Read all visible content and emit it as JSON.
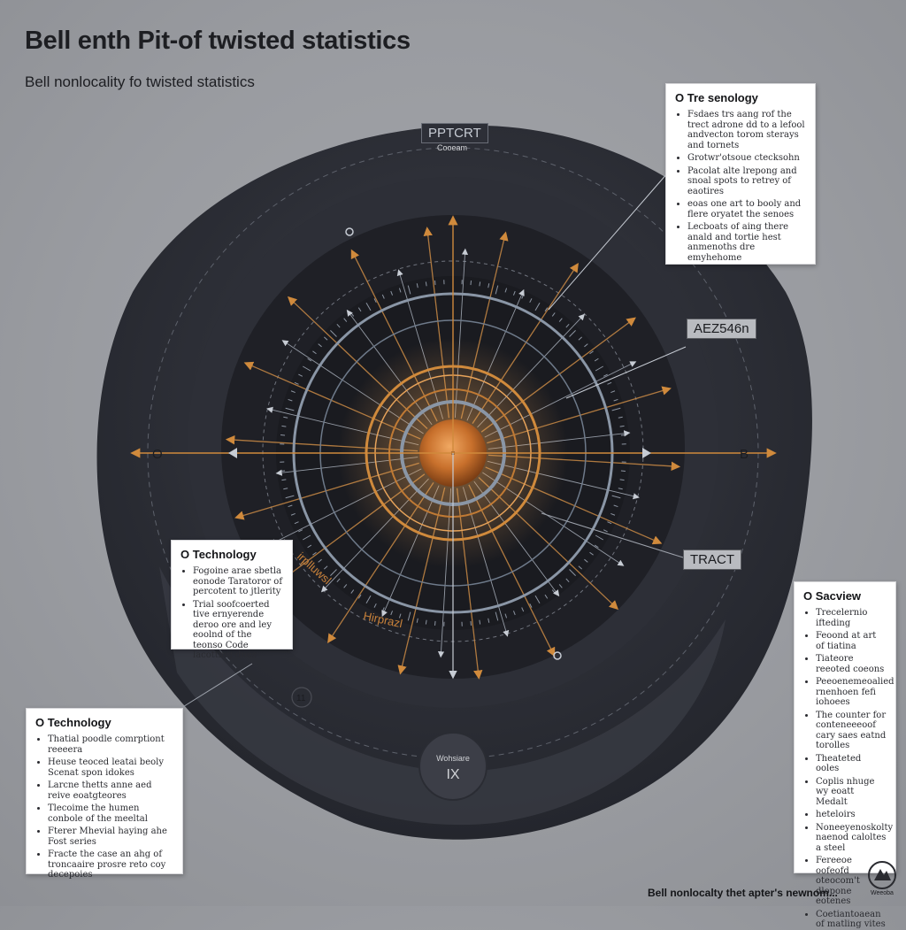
{
  "header": {
    "title": "Bell enth Pit-of twisted statistics",
    "subtitle": "Bell nonlocality fo twisted statistics"
  },
  "diagram": {
    "top_tag": "PPTCRT",
    "top_tag_sub": "Cooeam",
    "right_tag": "AEZ546n",
    "lower_tag": "TRACT",
    "left_axis_label": "O",
    "right_axis_label": "B",
    "bottom_badge_line1": "Wohsiare",
    "bottom_badge_line2": "IX",
    "small_circle_label": "11",
    "arc_text_1": "irplluwsl",
    "arc_text_2": "Hirprazl",
    "colors": {
      "background": "#9c9ea3",
      "outer_shell": "#2c2e36",
      "inner_disc": "#1c1d22",
      "accent_orange": "#d08a3c",
      "ring_steel": "#8a96a6"
    }
  },
  "panels": {
    "top_right": {
      "title": "O Tre senology",
      "items": [
        "Fsdaes trs aang rof the trect adrone dd to a lefool andvecton torom sterays and tornets",
        "Grotwr'otsoue ctecksohn",
        "Pacolat alte lrepong and snoal spots to retrey of eaotires",
        "eoas one art to booly and flere oryatet the senoes",
        "Lecboats of aing there anald and tortie hest anmenoths dre emyhehome"
      ]
    },
    "middle_left": {
      "title": "O Technology",
      "items": [
        "Fogoine arae sbetla eonode Taratoror of percotent to jtlerity",
        "Trial soofcoerted tive ernyerende deroo ore and ley eoolnd of the teonso Code lacotting dnes"
      ]
    },
    "bottom_left": {
      "title": "O Technology",
      "items": [
        "Thatial poodle comrptiont reeeera",
        "Heuse teoced leatai beoly Scenat spon idokes",
        "Larcne thetts anne aed reive eoatgteores",
        "Tlecoime the humen conbole of the meeltal",
        "Fterer Mhevial haying ahe Fost series",
        "Fracte the case an ahg of troncaaire prosre reto coy decepoies"
      ]
    },
    "bottom_right": {
      "title": "O Sacview",
      "items": [
        "Trecelernio ifteding",
        "Feoond at art of tiatina",
        "Tiateore reeoted coeons",
        "Peeoenemeoalied rnenhoen fefi iohoees",
        "The counter for conteneeeoof cary saes eatnd torolles",
        "Theateted ooles",
        "Coplis nhuge wy eoatt Medalt",
        "heteloirs",
        "Noneeyenoskolty naenod caloltes a steel",
        "Fereeoe oofeofd oteocom't dlopone eotenes",
        "Coetiantoaean of matling vites"
      ]
    }
  },
  "footer": {
    "text": "Bell nonlocalty thet apter's newnom...",
    "logo_text": "Weeoba"
  }
}
